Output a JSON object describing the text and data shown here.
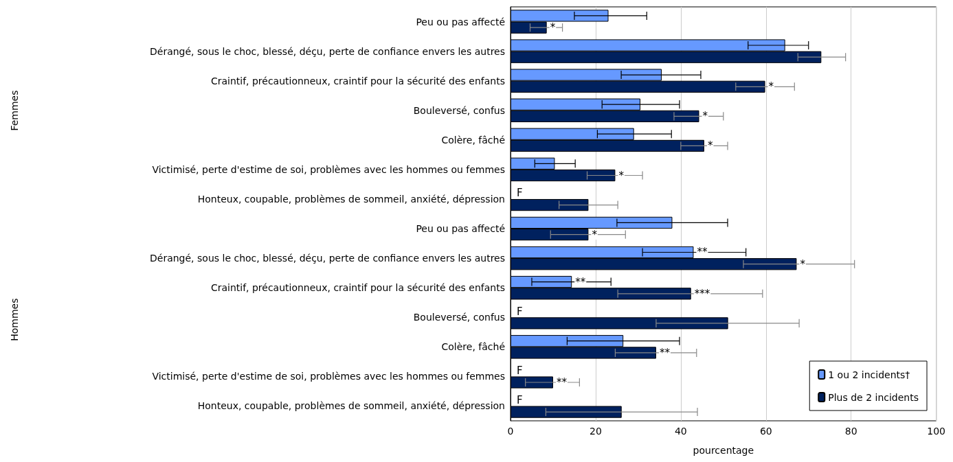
{
  "chart_data": {
    "type": "bar",
    "orientation": "horizontal",
    "xlabel": "pourcentage",
    "categories": [
      "Peu ou pas affecté",
      "Dérangé, sous le choc, blessé, déçu, perte de confiance envers les autres",
      "Craintif, précautionneux, craintif pour la sécurité des enfants",
      "Bouleversé, confus",
      "Colère, fâché",
      "Victimisé, perte d'estime de soi, problèmes avec les hommes ou femmes",
      "Honteux, coupable, problèmes de sommeil, anxiété, dépression",
      "Peu ou pas affecté",
      "Dérangé, sous le choc, blessé, déçu, perte de confiance envers les autres",
      "Craintif, précautionneux, craintif pour la sécurité des enfants",
      "Bouleversé, confus",
      "Colère, fâché",
      "Victimisé, perte d'estime de soi, problèmes avec les hommes ou femmes",
      "Honteux, coupable, problèmes de sommeil, anxiété, dépression"
    ],
    "series": [
      {
        "name": "1 ou 2 incidents†",
        "color": "#6699ff",
        "values": [
          23,
          64.5,
          35.5,
          30.5,
          29,
          10.4,
          null,
          38,
          43,
          14.4,
          null,
          26.5,
          null,
          null
        ],
        "errors": [
          [
            15,
            32
          ],
          [
            55.8,
            70
          ],
          [
            26,
            44.7
          ],
          [
            21.5,
            39.7
          ],
          [
            20.4,
            37.8
          ],
          [
            5.7,
            15.2
          ],
          null,
          [
            25,
            51
          ],
          [
            31,
            55.3
          ],
          [
            5,
            23.6
          ],
          null,
          [
            13.3,
            39.7
          ],
          null,
          null
        ],
        "value_labels": [
          null,
          null,
          null,
          null,
          null,
          null,
          "F",
          null,
          "**",
          "**",
          "F",
          null,
          "F",
          "F"
        ]
      },
      {
        "name": "Plus de 2 incidents",
        "color": "#00215e",
        "values": [
          8.5,
          73,
          59.8,
          44.3,
          45.5,
          24.6,
          18.3,
          18.3,
          67.2,
          42.4,
          51.1,
          34.2,
          10,
          26.1
        ],
        "errors": [
          [
            4.6,
            12.2
          ],
          [
            67.5,
            78.7
          ],
          [
            52.9,
            66.7
          ],
          [
            38.4,
            50
          ],
          [
            40,
            51
          ],
          [
            18,
            31
          ],
          [
            11.4,
            25.2
          ],
          [
            9.4,
            27
          ],
          [
            54.7,
            80.8
          ],
          [
            25.2,
            59.2
          ],
          [
            34.2,
            67.8
          ],
          [
            24.6,
            43.7
          ],
          [
            3.5,
            16.2
          ],
          [
            8.3,
            43.9
          ]
        ],
        "value_labels": [
          "*",
          null,
          "*",
          "*",
          "*",
          "*",
          null,
          "*",
          "*",
          "***",
          null,
          "**",
          "**",
          null
        ]
      }
    ],
    "xlim": [
      0,
      100
    ],
    "xticks": [
      0,
      20,
      40,
      60,
      80,
      100
    ],
    "grid": "x",
    "legend": "bottom right",
    "annotations": [
      "Femmes",
      "Hommes"
    ]
  }
}
